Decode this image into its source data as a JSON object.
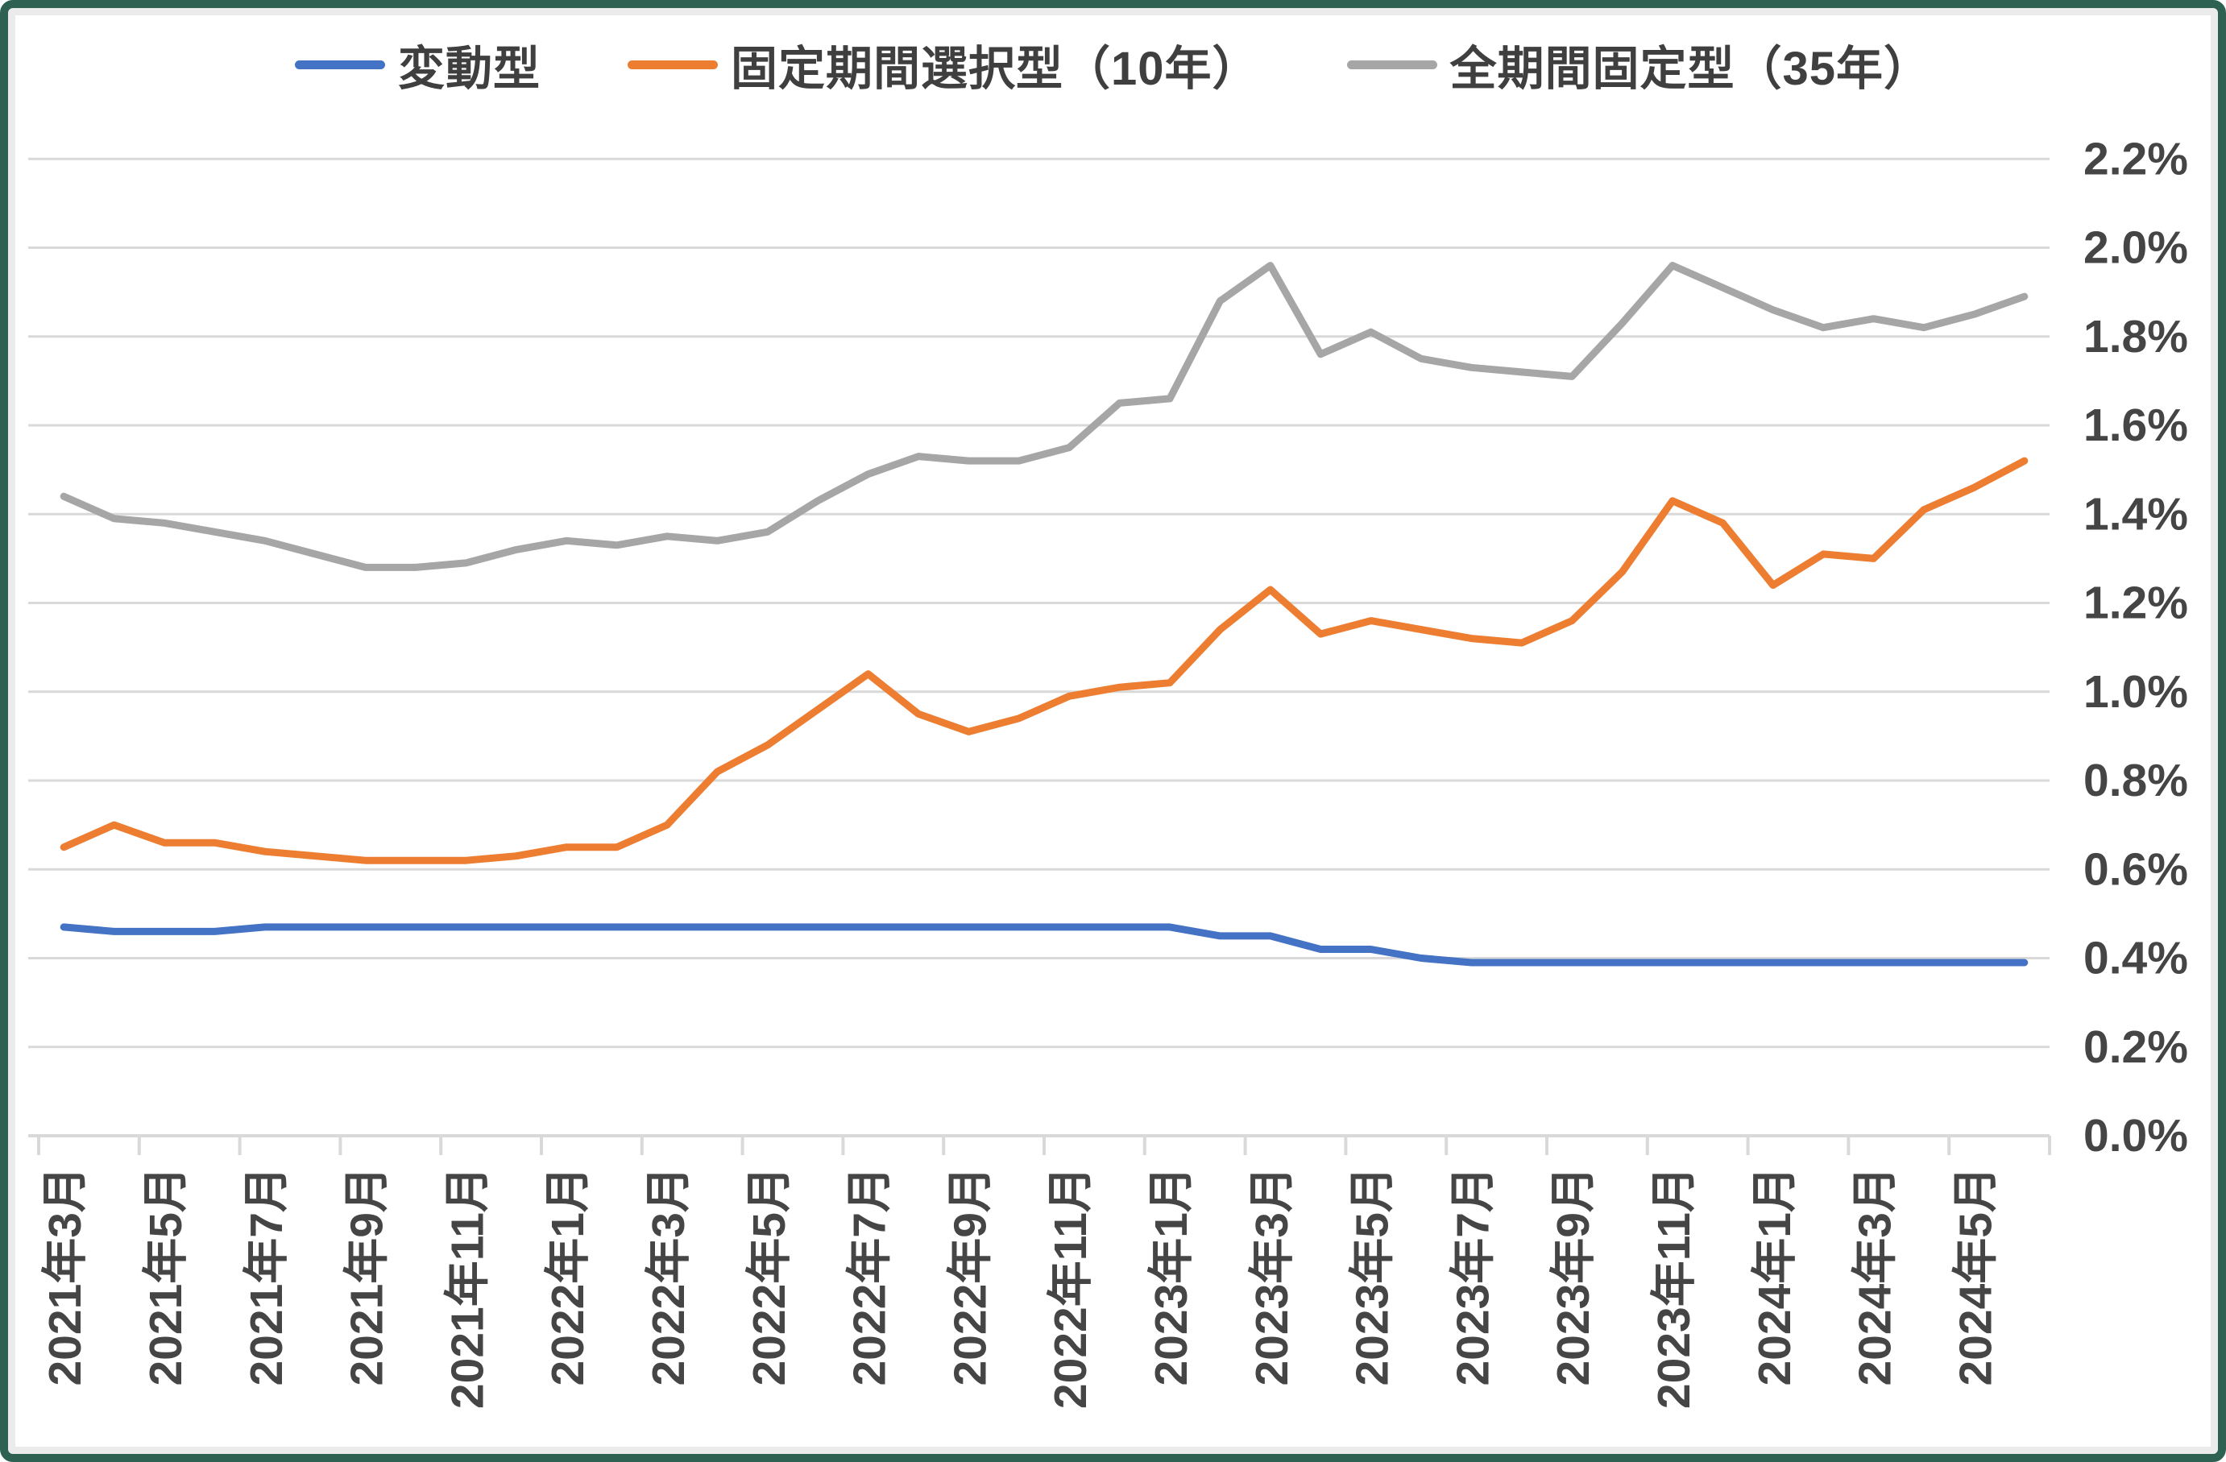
{
  "legend": [
    {
      "label": "変動型",
      "color": "#4472C4"
    },
    {
      "label": "固定期間選択型（10年）",
      "color": "#ED7D31"
    },
    {
      "label": "全期間固定型（35年）",
      "color": "#A6A6A6"
    }
  ],
  "colors": {
    "grid": "#D9D9D9",
    "axis_text": "#454545",
    "frame_border": "#2E6152",
    "background": "#FFFFFF"
  },
  "chart_data": {
    "type": "line",
    "title": "",
    "xlabel": "",
    "ylabel": "",
    "ylim": [
      0.0,
      2.2
    ],
    "ytick_step": 0.2,
    "grid": true,
    "legend_position": "top",
    "y_tick_labels": [
      "0.0%",
      "0.2%",
      "0.4%",
      "0.6%",
      "0.8%",
      "1.0%",
      "1.2%",
      "1.4%",
      "1.6%",
      "1.8%",
      "2.0%",
      "2.2%"
    ],
    "x_tick_labels": [
      "2021年3月",
      "2021年5月",
      "2021年7月",
      "2021年9月",
      "2021年11月",
      "2022年1月",
      "2022年3月",
      "2022年5月",
      "2022年7月",
      "2022年9月",
      "2022年11月",
      "2023年1月",
      "2023年3月",
      "2023年5月",
      "2023年7月",
      "2023年9月",
      "2023年11月",
      "2024年1月",
      "2024年3月",
      "2024年5月"
    ],
    "categories": [
      "2021年3月",
      "2021年4月",
      "2021年5月",
      "2021年6月",
      "2021年7月",
      "2021年8月",
      "2021年9月",
      "2021年10月",
      "2021年11月",
      "2021年12月",
      "2022年1月",
      "2022年2月",
      "2022年3月",
      "2022年4月",
      "2022年5月",
      "2022年6月",
      "2022年7月",
      "2022年8月",
      "2022年9月",
      "2022年10月",
      "2022年11月",
      "2022年12月",
      "2023年1月",
      "2023年2月",
      "2023年3月",
      "2023年4月",
      "2023年5月",
      "2023年6月",
      "2023年7月",
      "2023年8月",
      "2023年9月",
      "2023年10月",
      "2023年11月",
      "2023年12月",
      "2024年1月",
      "2024年2月",
      "2024年3月",
      "2024年4月",
      "2024年5月",
      "2024年6月"
    ],
    "label_every": 2,
    "series": [
      {
        "name": "変動型",
        "color": "#4472C4",
        "values": [
          0.47,
          0.46,
          0.46,
          0.46,
          0.47,
          0.47,
          0.47,
          0.47,
          0.47,
          0.47,
          0.47,
          0.47,
          0.47,
          0.47,
          0.47,
          0.47,
          0.47,
          0.47,
          0.47,
          0.47,
          0.47,
          0.47,
          0.47,
          0.45,
          0.45,
          0.42,
          0.42,
          0.4,
          0.39,
          0.39,
          0.39,
          0.39,
          0.39,
          0.39,
          0.39,
          0.39,
          0.39,
          0.39,
          0.39,
          0.39
        ]
      },
      {
        "name": "固定期間選択型（10年）",
        "color": "#ED7D31",
        "values": [
          0.65,
          0.7,
          0.66,
          0.66,
          0.64,
          0.63,
          0.62,
          0.62,
          0.62,
          0.63,
          0.65,
          0.65,
          0.7,
          0.82,
          0.88,
          0.96,
          1.04,
          0.95,
          0.91,
          0.94,
          0.99,
          1.01,
          1.02,
          1.14,
          1.23,
          1.13,
          1.16,
          1.14,
          1.12,
          1.11,
          1.16,
          1.27,
          1.43,
          1.38,
          1.24,
          1.31,
          1.3,
          1.41,
          1.46,
          1.52
        ]
      },
      {
        "name": "全期間固定型（35年）",
        "color": "#A6A6A6",
        "values": [
          1.44,
          1.39,
          1.38,
          1.36,
          1.34,
          1.31,
          1.28,
          1.28,
          1.29,
          1.32,
          1.34,
          1.33,
          1.35,
          1.34,
          1.36,
          1.43,
          1.49,
          1.53,
          1.52,
          1.52,
          1.55,
          1.65,
          1.66,
          1.88,
          1.96,
          1.76,
          1.81,
          1.75,
          1.73,
          1.72,
          1.71,
          1.83,
          1.96,
          1.91,
          1.86,
          1.82,
          1.84,
          1.82,
          1.85,
          1.89
        ]
      }
    ]
  }
}
